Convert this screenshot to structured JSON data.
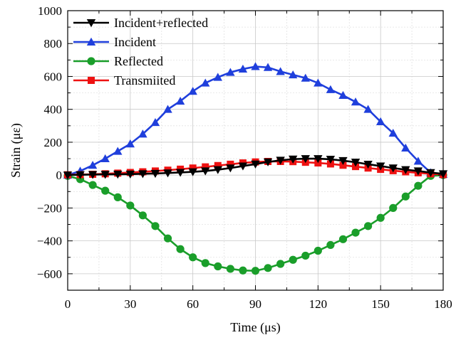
{
  "chart_data": {
    "type": "line",
    "xlabel": "Time (μs)",
    "ylabel": "Strain (με)",
    "xlim": [
      0,
      180
    ],
    "ylim": [
      -700,
      1000
    ],
    "x_ticks": [
      0,
      30,
      60,
      90,
      120,
      150,
      180
    ],
    "y_ticks": [
      -600,
      -400,
      -200,
      0,
      200,
      400,
      600,
      800,
      1000
    ],
    "grid": true,
    "legend_position": "top-left",
    "series": [
      {
        "name": "Incident+reflected",
        "color": "#000000",
        "marker": "triangle-down",
        "points": [
          [
            0,
            0
          ],
          [
            6,
            2
          ],
          [
            12,
            3
          ],
          [
            18,
            4
          ],
          [
            24,
            5
          ],
          [
            30,
            6
          ],
          [
            36,
            8
          ],
          [
            42,
            10
          ],
          [
            48,
            13
          ],
          [
            54,
            16
          ],
          [
            60,
            20
          ],
          [
            66,
            25
          ],
          [
            72,
            33
          ],
          [
            78,
            43
          ],
          [
            84,
            55
          ],
          [
            90,
            67
          ],
          [
            96,
            80
          ],
          [
            102,
            90
          ],
          [
            108,
            97
          ],
          [
            114,
            100
          ],
          [
            120,
            100
          ],
          [
            126,
            96
          ],
          [
            132,
            88
          ],
          [
            138,
            78
          ],
          [
            144,
            66
          ],
          [
            150,
            55
          ],
          [
            156,
            43
          ],
          [
            162,
            33
          ],
          [
            168,
            25
          ],
          [
            174,
            15
          ],
          [
            180,
            8
          ]
        ]
      },
      {
        "name": "Incident",
        "color": "#1f3fdc",
        "marker": "triangle-up",
        "points": [
          [
            0,
            0
          ],
          [
            6,
            25
          ],
          [
            12,
            60
          ],
          [
            18,
            100
          ],
          [
            24,
            145
          ],
          [
            30,
            190
          ],
          [
            36,
            250
          ],
          [
            42,
            320
          ],
          [
            48,
            400
          ],
          [
            54,
            450
          ],
          [
            60,
            510
          ],
          [
            66,
            560
          ],
          [
            72,
            595
          ],
          [
            78,
            625
          ],
          [
            84,
            645
          ],
          [
            90,
            660
          ],
          [
            96,
            655
          ],
          [
            102,
            630
          ],
          [
            108,
            610
          ],
          [
            114,
            590
          ],
          [
            120,
            560
          ],
          [
            126,
            520
          ],
          [
            132,
            485
          ],
          [
            138,
            445
          ],
          [
            144,
            400
          ],
          [
            150,
            325
          ],
          [
            156,
            255
          ],
          [
            162,
            165
          ],
          [
            168,
            85
          ],
          [
            174,
            15
          ],
          [
            180,
            5
          ]
        ]
      },
      {
        "name": "Reflected",
        "color": "#1a9e2a",
        "marker": "circle",
        "points": [
          [
            0,
            -5
          ],
          [
            6,
            -25
          ],
          [
            12,
            -60
          ],
          [
            18,
            -95
          ],
          [
            24,
            -135
          ],
          [
            30,
            -185
          ],
          [
            36,
            -245
          ],
          [
            42,
            -310
          ],
          [
            48,
            -385
          ],
          [
            54,
            -450
          ],
          [
            60,
            -500
          ],
          [
            66,
            -535
          ],
          [
            72,
            -555
          ],
          [
            78,
            -570
          ],
          [
            84,
            -580
          ],
          [
            90,
            -582
          ],
          [
            96,
            -565
          ],
          [
            102,
            -540
          ],
          [
            108,
            -515
          ],
          [
            114,
            -490
          ],
          [
            120,
            -460
          ],
          [
            126,
            -425
          ],
          [
            132,
            -390
          ],
          [
            138,
            -350
          ],
          [
            144,
            -310
          ],
          [
            150,
            -260
          ],
          [
            156,
            -200
          ],
          [
            162,
            -130
          ],
          [
            168,
            -65
          ],
          [
            174,
            -5
          ],
          [
            180,
            0
          ]
        ]
      },
      {
        "name": "Transmiited",
        "color": "#ee1111",
        "marker": "square",
        "points": [
          [
            0,
            2
          ],
          [
            6,
            3
          ],
          [
            12,
            5
          ],
          [
            18,
            8
          ],
          [
            24,
            12
          ],
          [
            30,
            16
          ],
          [
            36,
            20
          ],
          [
            42,
            25
          ],
          [
            48,
            30
          ],
          [
            54,
            36
          ],
          [
            60,
            43
          ],
          [
            66,
            50
          ],
          [
            72,
            58
          ],
          [
            78,
            66
          ],
          [
            84,
            74
          ],
          [
            90,
            80
          ],
          [
            96,
            83
          ],
          [
            102,
            83
          ],
          [
            108,
            82
          ],
          [
            114,
            78
          ],
          [
            120,
            74
          ],
          [
            126,
            68
          ],
          [
            132,
            60
          ],
          [
            138,
            52
          ],
          [
            144,
            43
          ],
          [
            150,
            35
          ],
          [
            156,
            27
          ],
          [
            162,
            20
          ],
          [
            168,
            14
          ],
          [
            174,
            8
          ],
          [
            180,
            3
          ]
        ]
      }
    ]
  }
}
